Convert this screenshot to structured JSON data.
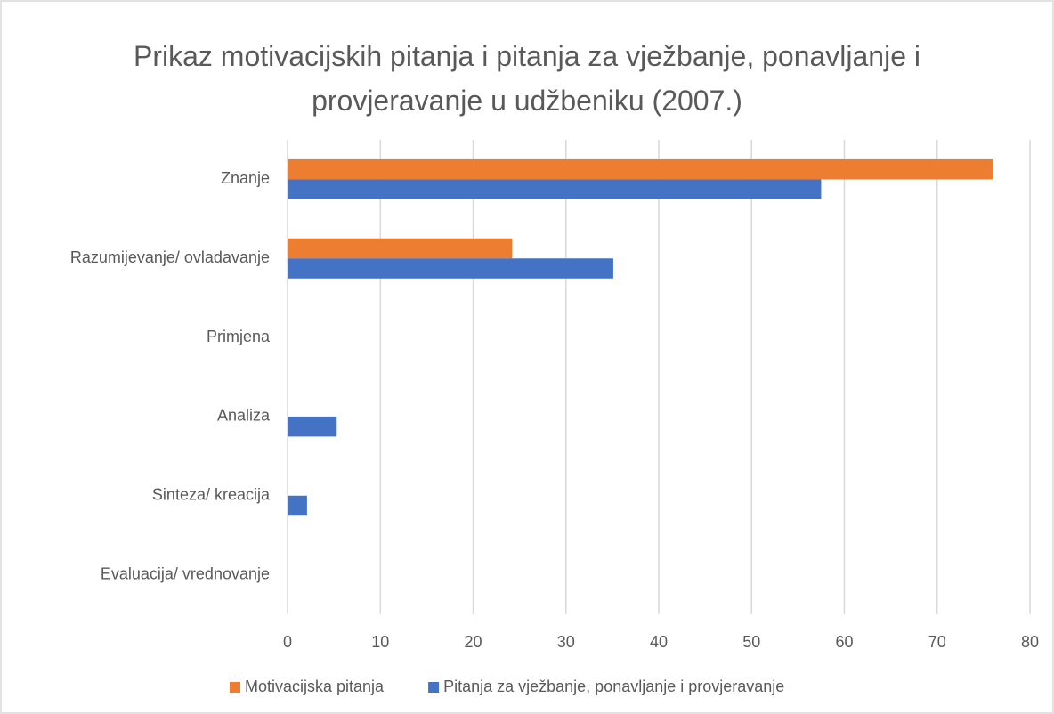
{
  "chart_data": {
    "type": "hbar",
    "title": "Prikaz motivacijskih pitanja i pitanja za vježbanje, ponavljanje i provjeravanje u udžbeniku (2007.)",
    "categories": [
      "Znanje",
      "Razumijevanje/ ovladavanje",
      "Primjena",
      "Analiza",
      "Sinteza/ kreacija",
      "Evaluacija/ vrednovanje"
    ],
    "series": [
      {
        "name": "Motivacijska pitanja",
        "color": "#ed7d31",
        "values": [
          76,
          24.2,
          0,
          0,
          0,
          0
        ]
      },
      {
        "name": "Pitanja za vježbanje, ponavljanje i provjeravanje",
        "color": "#4472c4",
        "values": [
          57.5,
          35.1,
          0,
          5.3,
          2.1,
          0
        ]
      }
    ],
    "xlim": [
      0,
      80
    ],
    "xticks": [
      0,
      10,
      20,
      30,
      40,
      50,
      60,
      70,
      80
    ],
    "grid": true,
    "legend": "bottom"
  }
}
